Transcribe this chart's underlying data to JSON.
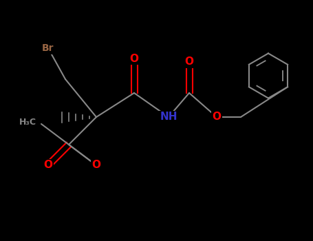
{
  "bg_color": "#000000",
  "bond_color": "#888888",
  "O_color": "#ff0000",
  "N_color": "#3333cc",
  "Br_color": "#996644",
  "figsize": [
    4.55,
    3.5
  ],
  "dpi": 100,
  "xlim": [
    0,
    9.1
  ],
  "ylim": [
    0,
    7.0
  ]
}
